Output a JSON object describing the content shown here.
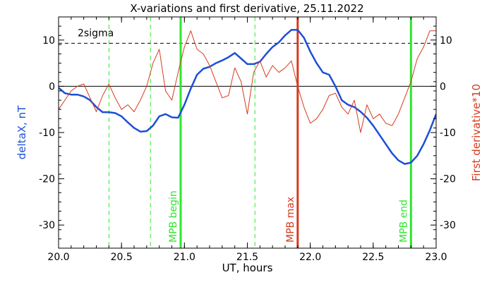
{
  "chart_data": {
    "type": "line",
    "title": "X-variations and first derivative, 25.11.2022",
    "xlabel": "UT, hours",
    "ylabel_left": "deltaX, nT",
    "ylabel_right": "First derivative*10",
    "xlim": [
      20.0,
      23.0
    ],
    "ylim": [
      -35,
      15
    ],
    "x_ticks": [
      "20.0",
      "20.5",
      "21.0",
      "21.5",
      "22.0",
      "22.5",
      "23.0"
    ],
    "x_tick_values": [
      20.0,
      20.5,
      21.0,
      21.5,
      22.0,
      22.5,
      23.0
    ],
    "y_ticks": [
      "10",
      "0",
      "-10",
      "-20",
      "-30"
    ],
    "y_tick_values": [
      10,
      0,
      -10,
      -20,
      -30
    ],
    "grid": false,
    "threshold": {
      "label": "2sigma",
      "value": 9.3,
      "style": "dashed",
      "color": "#000000"
    },
    "zero_line": 0,
    "series": [
      {
        "name": "deltaX, nT",
        "color": "#1c4fd6",
        "x": [
          20.0,
          20.05,
          20.1,
          20.15,
          20.2,
          20.25,
          20.3,
          20.35,
          20.4,
          20.45,
          20.5,
          20.55,
          20.6,
          20.65,
          20.7,
          20.75,
          20.8,
          20.85,
          20.9,
          20.95,
          21.0,
          21.05,
          21.1,
          21.15,
          21.2,
          21.25,
          21.3,
          21.35,
          21.4,
          21.45,
          21.5,
          21.55,
          21.6,
          21.65,
          21.7,
          21.75,
          21.8,
          21.85,
          21.9,
          21.95,
          22.0,
          22.05,
          22.1,
          22.15,
          22.2,
          22.25,
          22.3,
          22.35,
          22.4,
          22.45,
          22.5,
          22.55,
          22.6,
          22.65,
          22.7,
          22.75,
          22.8,
          22.85,
          22.9,
          22.95,
          23.0
        ],
        "values": [
          -0.3,
          -1.5,
          -1.8,
          -1.8,
          -2.2,
          -3.0,
          -4.5,
          -5.6,
          -5.6,
          -5.8,
          -6.5,
          -7.8,
          -9.0,
          -9.8,
          -9.7,
          -8.5,
          -6.5,
          -6.0,
          -6.7,
          -6.8,
          -4.0,
          -0.5,
          2.5,
          3.8,
          4.2,
          5.0,
          5.6,
          6.3,
          7.2,
          6.0,
          4.8,
          4.8,
          5.3,
          7.0,
          8.5,
          9.5,
          11.0,
          12.2,
          12.2,
          10.5,
          7.5,
          5.0,
          3.0,
          2.5,
          0.0,
          -3.0,
          -4.0,
          -4.5,
          -5.5,
          -6.8,
          -8.5,
          -10.5,
          -12.5,
          -14.5,
          -16.0,
          -16.8,
          -16.5,
          -15.0,
          -12.5,
          -9.5,
          -6.0
        ]
      },
      {
        "name": "First derivative*10",
        "color": "#d63a1e",
        "x": [
          20.0,
          20.05,
          20.1,
          20.15,
          20.2,
          20.25,
          20.3,
          20.35,
          20.4,
          20.45,
          20.5,
          20.55,
          20.6,
          20.65,
          20.7,
          20.75,
          20.8,
          20.85,
          20.9,
          20.95,
          21.0,
          21.05,
          21.1,
          21.15,
          21.2,
          21.25,
          21.3,
          21.35,
          21.4,
          21.45,
          21.5,
          21.55,
          21.6,
          21.65,
          21.7,
          21.75,
          21.8,
          21.85,
          21.9,
          21.95,
          22.0,
          22.05,
          22.1,
          22.15,
          22.2,
          22.25,
          22.3,
          22.35,
          22.4,
          22.45,
          22.5,
          22.55,
          22.6,
          22.65,
          22.7,
          22.75,
          22.8,
          22.85,
          22.9,
          22.95,
          23.0
        ],
        "values": [
          -5.0,
          -3.0,
          -1.0,
          0.0,
          0.5,
          -2.5,
          -5.5,
          -2.0,
          0.5,
          -2.5,
          -5.0,
          -4.0,
          -5.5,
          -3.0,
          0.0,
          5.0,
          8.0,
          -1.0,
          -3.0,
          3.0,
          8.5,
          12.0,
          8.0,
          7.0,
          4.5,
          1.0,
          -2.5,
          -2.0,
          4.0,
          1.0,
          -6.0,
          3.0,
          5.5,
          2.0,
          4.5,
          3.0,
          4.0,
          5.5,
          0.0,
          -4.5,
          -8.0,
          -7.0,
          -5.0,
          -2.0,
          -1.5,
          -4.5,
          -6.0,
          -3.0,
          -10.0,
          -4.0,
          -7.0,
          -6.0,
          -8.0,
          -8.5,
          -6.0,
          -2.5,
          1.0,
          6.0,
          8.5,
          12.0,
          12.0
        ]
      }
    ],
    "markers": [
      {
        "label": "",
        "x": 20.4,
        "color": "#2ee62e",
        "style": "dashed"
      },
      {
        "label": "",
        "x": 20.73,
        "color": "#2ee62e",
        "style": "dashed"
      },
      {
        "label": "MPB begin",
        "x": 20.97,
        "color": "#2ee62e",
        "style": "solid"
      },
      {
        "label": "",
        "x": 21.56,
        "color": "#2ee62e",
        "style": "dashed"
      },
      {
        "label": "MPB max",
        "x": 21.9,
        "color": "#d63a1e",
        "style": "solid"
      },
      {
        "label": "MPB end",
        "x": 22.8,
        "color": "#2ee62e",
        "style": "solid"
      }
    ],
    "axis_label_colors": {
      "left": "#1c4fd6",
      "right": "#d63a1e"
    }
  }
}
